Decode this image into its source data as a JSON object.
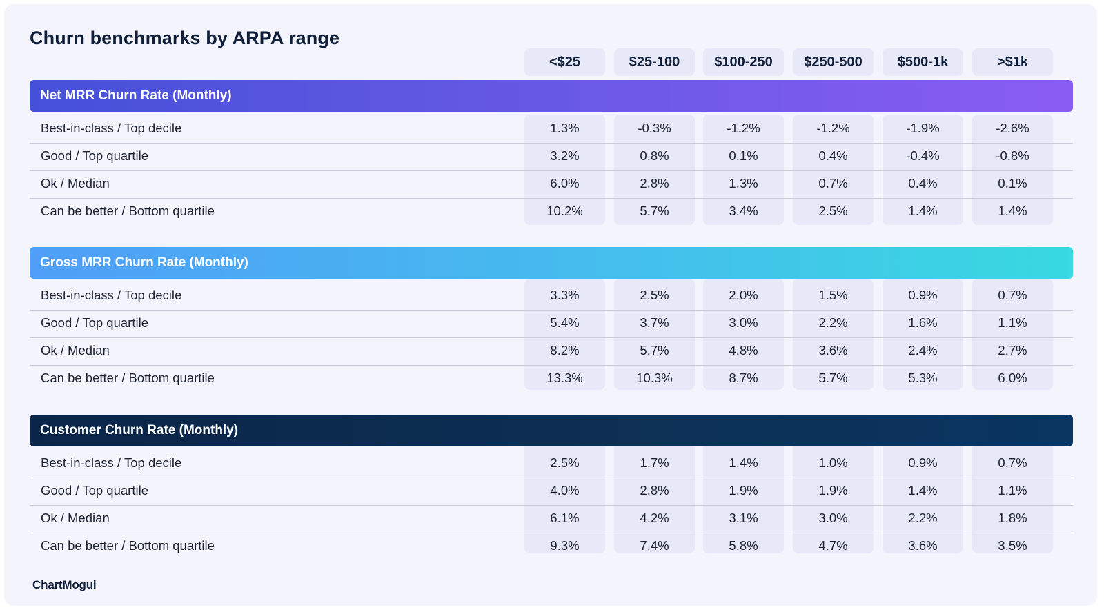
{
  "title": "Churn benchmarks by ARPA range",
  "columns": [
    "<$25",
    "$25-100",
    "$100-250",
    "$250-500",
    "$500-1k",
    ">$1k"
  ],
  "logo": "ChartMogul",
  "colors": {
    "net_band": "#5b56e3",
    "gross_band": "#47b3f0",
    "customer_band": "#0b2b50",
    "column_bg": "#e7e9f8",
    "card_bg": "#f3f4fc"
  },
  "chart_data": {
    "type": "table",
    "title": "Churn benchmarks by ARPA range",
    "columns": [
      "<$25",
      "$25-100",
      "$100-250",
      "$250-500",
      "$500-1k",
      ">$1k"
    ],
    "sections": [
      {
        "name": "Net MRR Churn Rate (Monthly)",
        "rows": [
          {
            "label": "Best-in-class / Top decile",
            "values": [
              "1.3%",
              "-0.3%",
              "-1.2%",
              "-1.2%",
              "-1.9%",
              "-2.6%"
            ]
          },
          {
            "label": "Good / Top quartile",
            "values": [
              "3.2%",
              "0.8%",
              "0.1%",
              "0.4%",
              "-0.4%",
              "-0.8%"
            ]
          },
          {
            "label": "Ok / Median",
            "values": [
              "6.0%",
              "2.8%",
              "1.3%",
              "0.7%",
              "0.4%",
              "0.1%"
            ]
          },
          {
            "label": "Can be better / Bottom quartile",
            "values": [
              "10.2%",
              "5.7%",
              "3.4%",
              "2.5%",
              "1.4%",
              "1.4%"
            ]
          }
        ]
      },
      {
        "name": "Gross MRR Churn Rate (Monthly)",
        "rows": [
          {
            "label": "Best-in-class / Top decile",
            "values": [
              "3.3%",
              "2.5%",
              "2.0%",
              "1.5%",
              "0.9%",
              "0.7%"
            ]
          },
          {
            "label": "Good / Top quartile",
            "values": [
              "5.4%",
              "3.7%",
              "3.0%",
              "2.2%",
              "1.6%",
              "1.1%"
            ]
          },
          {
            "label": "Ok / Median",
            "values": [
              "8.2%",
              "5.7%",
              "4.8%",
              "3.6%",
              "2.4%",
              "2.7%"
            ]
          },
          {
            "label": "Can be better / Bottom quartile",
            "values": [
              "13.3%",
              "10.3%",
              "8.7%",
              "5.7%",
              "5.3%",
              "6.0%"
            ]
          }
        ]
      },
      {
        "name": "Customer Churn Rate (Monthly)",
        "rows": [
          {
            "label": "Best-in-class / Top decile",
            "values": [
              "2.5%",
              "1.7%",
              "1.4%",
              "1.0%",
              "0.9%",
              "0.7%"
            ]
          },
          {
            "label": "Good / Top quartile",
            "values": [
              "4.0%",
              "2.8%",
              "1.9%",
              "1.9%",
              "1.4%",
              "1.1%"
            ]
          },
          {
            "label": "Ok / Median",
            "values": [
              "6.1%",
              "4.2%",
              "3.1%",
              "3.0%",
              "2.2%",
              "1.8%"
            ]
          },
          {
            "label": "Can be better / Bottom quartile",
            "values": [
              "9.3%",
              "7.4%",
              "5.8%",
              "4.7%",
              "3.6%",
              "3.5%"
            ]
          }
        ]
      }
    ]
  }
}
